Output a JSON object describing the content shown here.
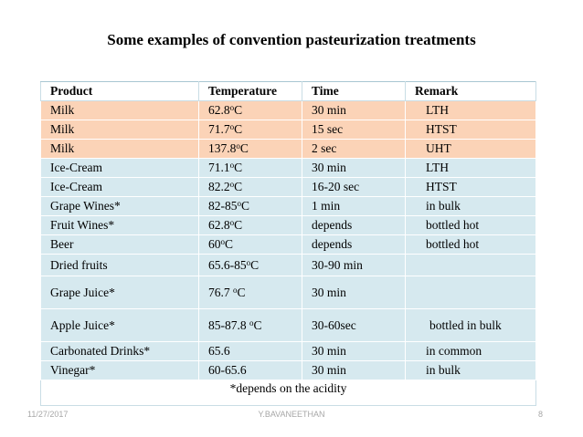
{
  "title": "Some examples of convention pasteurization treatments",
  "table": {
    "headers": {
      "product": "Product",
      "temperature": "Temperature",
      "time": "Time",
      "remark": "Remark"
    },
    "rows": [
      {
        "product": "Milk",
        "temp_main": "62.8",
        "temp_sup": "o",
        "temp_unit": "C",
        "time": "30 min",
        "remark": "LTH",
        "style": "peach"
      },
      {
        "product": "Milk",
        "temp_main": "71.7",
        "temp_sup": "o",
        "temp_unit": "C",
        "time": "15 sec",
        "remark": "HTST",
        "style": "peach"
      },
      {
        "product": "Milk",
        "temp_main": "137.8",
        "temp_sup": "o",
        "temp_unit": "C",
        "time": "2 sec",
        "remark": "UHT",
        "style": "peach"
      },
      {
        "product": "Ice-Cream",
        "temp_main": "71.1",
        "temp_sup": "o",
        "temp_unit": "C",
        "time": "30 min",
        "remark": "LTH",
        "style": "blue"
      },
      {
        "product": "Ice-Cream",
        "temp_main": "82.2",
        "temp_sup": "o",
        "temp_unit": "C",
        "time": "16-20 sec",
        "remark": "HTST",
        "style": "blue"
      },
      {
        "product": "Grape Wines*",
        "temp_main": "82-85",
        "temp_sup": "o",
        "temp_unit": "C",
        "time": "1 min",
        "remark": "in bulk",
        "style": "blue"
      },
      {
        "product": "Fruit Wines*",
        "temp_main": "62.8",
        "temp_sup": "o",
        "temp_unit": "C",
        "time": "depends",
        "remark": "bottled hot",
        "style": "blue"
      },
      {
        "product": "Beer",
        "temp_main": "60",
        "temp_sup": "o",
        "temp_unit": "C",
        "time": "depends",
        "remark": "bottled hot",
        "style": "blue"
      },
      {
        "product": "Dried fruits",
        "temp_main": "65.6-85",
        "temp_sup": "o",
        "temp_unit": "C",
        "time": "30-90 min",
        "remark": "",
        "style": "blue"
      },
      {
        "product": "Grape Juice*",
        "temp_main": "76.7 ",
        "temp_sup": "o",
        "temp_unit": "C",
        "time": "30 min",
        "remark": "",
        "style": "blue"
      },
      {
        "product": "Apple Juice*",
        "temp_main": "85-87.8 ",
        "temp_sup": "o",
        "temp_unit": "C",
        "time": "30-60sec",
        "remark": "bottled in bulk",
        "style": "blue"
      },
      {
        "product": "Carbonated Drinks*",
        "temp_main": "65.6",
        "temp_sup": "",
        "temp_unit": "",
        "time": "30 min",
        "remark": "in common",
        "style": "blue"
      },
      {
        "product": "Vinegar*",
        "temp_main": "60-65.6",
        "temp_sup": "",
        "temp_unit": "",
        "time": "30 min",
        "remark": "in bulk",
        "style": "blue"
      }
    ],
    "footnote": "*depends on the acidity"
  },
  "footer": {
    "date": "11/27/2017",
    "author": "Y.BAVANEETHAN",
    "page": "8"
  },
  "colors": {
    "peach_row": "#fbd3b7",
    "blue_row": "#d6e9ef",
    "footer_text": "#a7a7a7"
  }
}
